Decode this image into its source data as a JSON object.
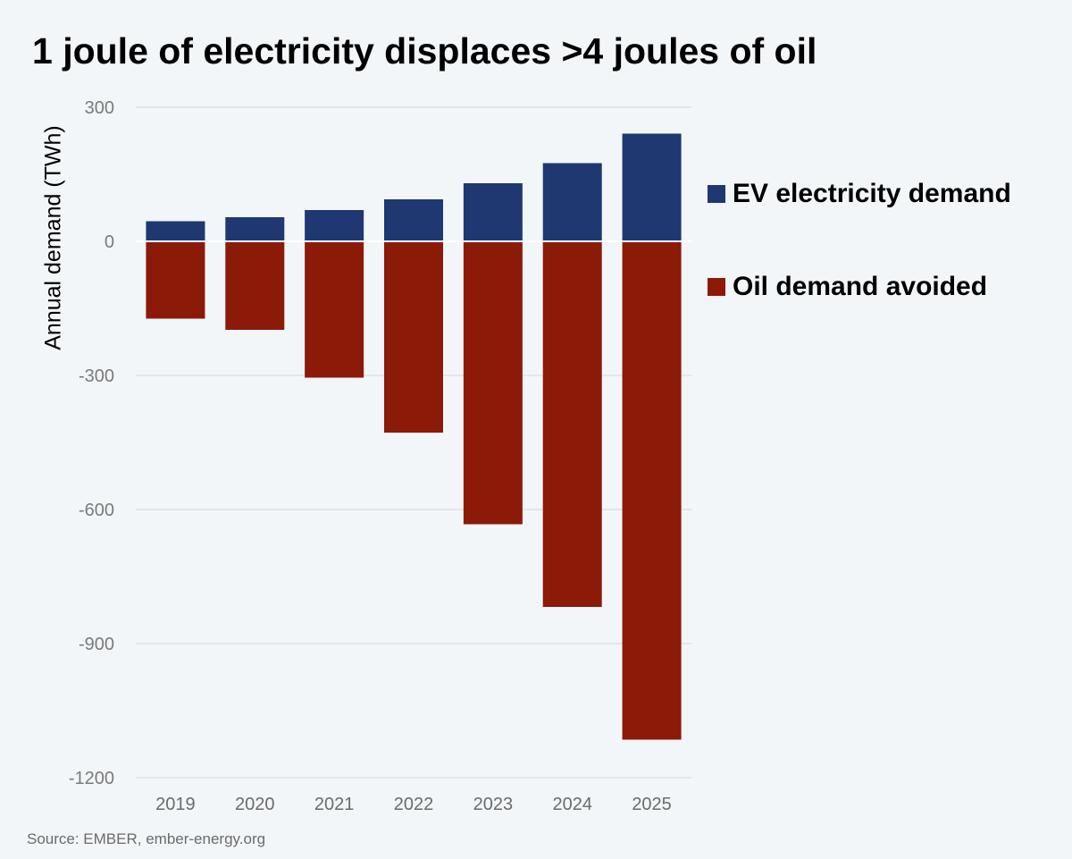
{
  "chart_data": {
    "type": "bar",
    "title": "1 joule of electricity displaces >4 joules of oil",
    "ylabel": "Annual demand (TWh)",
    "xlabel": "",
    "categories": [
      "2019",
      "2020",
      "2021",
      "2022",
      "2023",
      "2024",
      "2025"
    ],
    "series": [
      {
        "name": "EV electricity demand",
        "color": "#1f3872",
        "values": [
          45,
          54,
          70,
          94,
          130,
          175,
          241
        ]
      },
      {
        "name": "Oil demand avoided",
        "color": "#8b1a09",
        "values": [
          -173,
          -198,
          -305,
          -428,
          -633,
          -818,
          -1115
        ]
      }
    ],
    "yticks": [
      "300",
      "0",
      "-300",
      "-600",
      "-900",
      "-1200"
    ],
    "ylim": [
      -1200,
      300
    ],
    "grid": true,
    "legend_position": "right",
    "stacked": true,
    "source": "Source: EMBER, ember-energy.org"
  }
}
